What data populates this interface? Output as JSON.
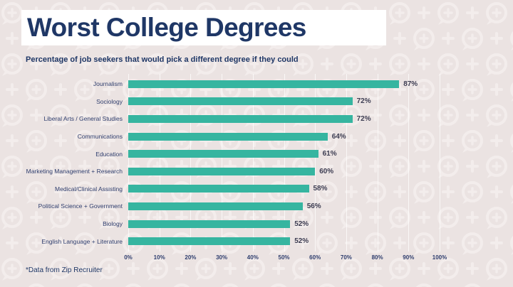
{
  "header": {
    "title": "Worst College Degrees",
    "subtitle": "Percentage of job seekers that would pick a different degree if they could"
  },
  "footer": {
    "note": "*Data from Zip Recruiter"
  },
  "colors": {
    "background": "#EBE3E2",
    "pattern_icon": "#F3EDEC",
    "bar": "#36B5A0",
    "title_navy": "#1F3766",
    "category_navy": "#2F3E6E",
    "value_dark": "#3D3D52",
    "title_band": "#FFFFFF"
  },
  "chart_data": {
    "type": "bar",
    "orientation": "horizontal",
    "title": "Worst College Degrees",
    "subtitle": "Percentage of job seekers that would pick a different degree if they could",
    "xlabel": "",
    "ylabel": "",
    "xlim": [
      0,
      100
    ],
    "grid": true,
    "categories": [
      "Journalism",
      "Sociology",
      "Liberal Arts / General Studies",
      "Communications",
      "Education",
      "Marketing Management + Research",
      "Medical/Clinical Assisting",
      "Political Science + Government",
      "Biology",
      "English Language + Literature"
    ],
    "values": [
      87,
      72,
      72,
      64,
      61,
      60,
      58,
      56,
      52,
      52
    ],
    "value_labels": [
      "87%",
      "72%",
      "72%",
      "64%",
      "61%",
      "60%",
      "58%",
      "56%",
      "52%",
      "52%"
    ],
    "x_ticks": [
      "0%",
      "10%",
      "20%",
      "30%",
      "40%",
      "50%",
      "60%",
      "70%",
      "80%",
      "90%",
      "100%"
    ]
  }
}
